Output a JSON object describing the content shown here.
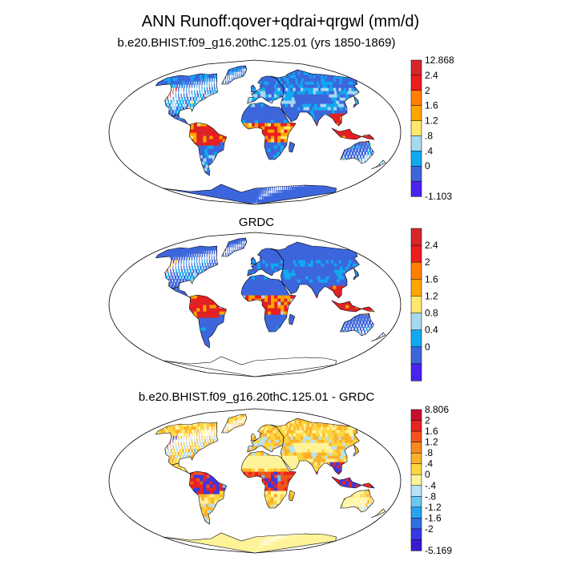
{
  "figure": {
    "title": "ANN Runoff:qover+qdrai+qrgwl (mm/d)"
  },
  "chart_data": [
    {
      "type": "heatmap",
      "panel": "model",
      "title": "b.e20.BHIST.f09_g16.20thC.125.01 (yrs 1850-1869)",
      "colorbar": {
        "labels": [
          "12.868",
          "2.4",
          "2",
          "1.6",
          "1.2",
          ".8",
          ".4",
          "0",
          "-1.103"
        ],
        "colors": [
          "#d7262b",
          "#ee1c1c",
          "#ff7f00",
          "#ffa500",
          "#ffe86b",
          "#a6d9f0",
          "#10aaf0",
          "#3d66dc",
          "#4a22f0"
        ]
      }
    },
    {
      "type": "heatmap",
      "panel": "observations",
      "title": "GRDC",
      "colorbar": {
        "labels": [
          "2.4",
          "2",
          "1.6",
          "1.2",
          "0.8",
          "0.4",
          "0"
        ],
        "colors": [
          "#d7262b",
          "#ee1c1c",
          "#ff7f00",
          "#ffa500",
          "#ffe86b",
          "#a6d9f0",
          "#10aaf0",
          "#3d66dc",
          "#4a22f0"
        ]
      }
    },
    {
      "type": "heatmap",
      "panel": "difference",
      "title": "b.e20.BHIST.f09_g16.20thC.125.01 - GRDC",
      "colorbar": {
        "labels": [
          "8.806",
          "2",
          "1.6",
          "1.2",
          ".8",
          ".4",
          "0",
          "-.4",
          "-.8",
          "-1.2",
          "-1.6",
          "-2",
          "-5.169"
        ],
        "colors": [
          "#c8102e",
          "#e8231f",
          "#f2541b",
          "#f78a1d",
          "#fbb12a",
          "#fdd63f",
          "#fff39a",
          "#b9e1f7",
          "#6cc6f2",
          "#28a3ee",
          "#2f6fe0",
          "#3a39e6",
          "#3a1ad2"
        ]
      }
    }
  ],
  "land_palettes": {
    "model": [
      "#3d66dc",
      "#3d66dc",
      "#3d66dc",
      "#10aaf0",
      "#a6d9f0",
      "#ffe86b",
      "#ffa500",
      "#ee1c1c",
      "#d7262b"
    ],
    "observations": [
      "#3d66dc",
      "#3d66dc",
      "#3d66dc",
      "#3d66dc",
      "#10aaf0",
      "#a6d9f0",
      "#ffa500",
      "#ee1c1c",
      "#d7262b"
    ],
    "difference": [
      "#fff39a",
      "#fff39a",
      "#fdd63f",
      "#fbb12a",
      "#b9e1f7",
      "#6cc6f2",
      "#f2541b",
      "#e8231f",
      "#3a39e6"
    ]
  }
}
